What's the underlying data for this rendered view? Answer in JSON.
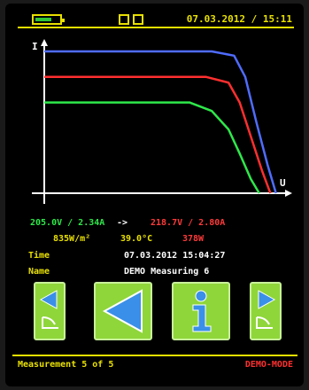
{
  "header": {
    "datetime": "07.03.2012 / 15:11"
  },
  "chart_data": {
    "type": "line",
    "xlabel": "U",
    "ylabel": "I",
    "series": [
      {
        "color": "#4f6cff",
        "x": [
          0,
          0.6,
          0.68,
          0.72,
          0.76,
          0.8,
          0.83
        ],
        "y": [
          1.0,
          1.0,
          0.97,
          0.82,
          0.5,
          0.2,
          0.0
        ]
      },
      {
        "color": "#ff2f2f",
        "x": [
          0,
          0.58,
          0.66,
          0.7,
          0.74,
          0.78,
          0.81
        ],
        "y": [
          0.82,
          0.82,
          0.78,
          0.64,
          0.4,
          0.16,
          0.0
        ]
      },
      {
        "color": "#2ee84a",
        "x": [
          0,
          0.52,
          0.6,
          0.66,
          0.7,
          0.74,
          0.77
        ],
        "y": [
          0.64,
          0.64,
          0.58,
          0.45,
          0.28,
          0.1,
          0.0
        ]
      }
    ]
  },
  "readouts": {
    "green": "205.0V / 2.34A",
    "arrow": "->",
    "red": "218.7V / 2.80A",
    "irradiance": "835W/m²",
    "temperature": "39.0°C",
    "power": "378W"
  },
  "info": {
    "time_label": "Time",
    "time_value": "07.03.2012 15:04:27",
    "name_label": "Name",
    "name_value": "DEMO Measuring 6"
  },
  "status": {
    "left": "Measurement 5 of 5",
    "right": "DEMO-MODE"
  },
  "colors": {
    "accent": "#e8e000",
    "button": "#8fd63a"
  },
  "icons": [
    "battery-icon",
    "left-step-icon",
    "back-arrow-icon",
    "info-icon",
    "right-step-icon"
  ]
}
